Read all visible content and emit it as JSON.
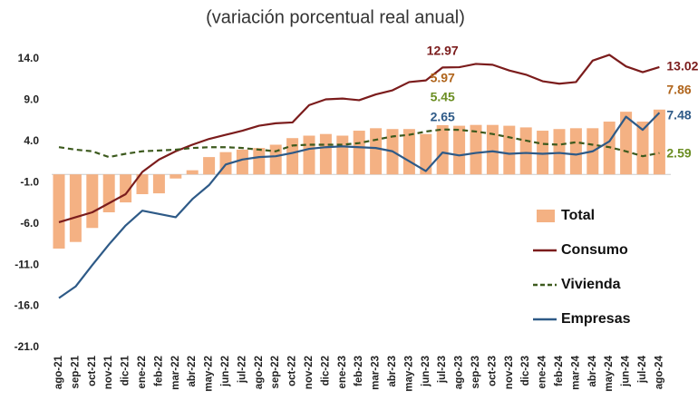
{
  "chart_data": {
    "type": "combo",
    "subtitle": "(variación porcentual real anual)",
    "categories": [
      "ago-21",
      "sep-21",
      "oct-21",
      "nov-21",
      "dic-21",
      "ene-22",
      "feb-22",
      "mar-22",
      "abr-22",
      "may-22",
      "jun-22",
      "jul-22",
      "ago-22",
      "sep-22",
      "oct-22",
      "nov-22",
      "dic-22",
      "ene-23",
      "feb-23",
      "mar-23",
      "abr-23",
      "may-23",
      "jun-23",
      "jul-23",
      "ago-23",
      "sep-23",
      "oct-23",
      "nov-23",
      "dic-23",
      "ene-24",
      "feb-24",
      "mar-24",
      "abr-24",
      "may-24",
      "jun-24",
      "jul-24",
      "ago-24"
    ],
    "ylim": [
      -21,
      14
    ],
    "yticks": [
      {
        "value": 14,
        "label": "14.0"
      },
      {
        "value": 9,
        "label": "9.0"
      },
      {
        "value": 4,
        "label": "4.0"
      },
      {
        "value": -1,
        "label": "-1.0"
      },
      {
        "value": -6,
        "label": "-6.0"
      },
      {
        "value": -11,
        "label": "-11.0"
      },
      {
        "value": -16,
        "label": "-16.0"
      },
      {
        "value": -21,
        "label": "-21.0"
      }
    ],
    "series": [
      {
        "name": "Total",
        "mark": "bar",
        "color": "#f4b183",
        "label_color": "#b0651c",
        "values": [
          -9.0,
          -8.2,
          -6.5,
          -4.6,
          -3.4,
          -2.4,
          -2.3,
          -0.5,
          0.5,
          2.1,
          2.7,
          3.0,
          3.2,
          3.6,
          4.4,
          4.7,
          4.9,
          4.7,
          5.3,
          5.6,
          5.5,
          5.5,
          4.9,
          5.97,
          5.9,
          6.0,
          6.0,
          5.9,
          5.7,
          5.3,
          5.5,
          5.6,
          5.6,
          6.4,
          7.6,
          6.4,
          7.86
        ],
        "value_labels": [
          null,
          null,
          null,
          null,
          null,
          null,
          null,
          null,
          null,
          null,
          null,
          null,
          null,
          null,
          null,
          null,
          null,
          null,
          null,
          null,
          null,
          null,
          null,
          "5.97",
          null,
          null,
          null,
          null,
          null,
          null,
          null,
          null,
          null,
          null,
          null,
          null,
          "7.86"
        ]
      },
      {
        "name": "Consumo",
        "mark": "line",
        "dash": false,
        "color": "#7b1c1c",
        "label_color": "#7b1c1c",
        "values": [
          -5.8,
          -5.2,
          -4.6,
          -3.5,
          -2.4,
          0.3,
          1.8,
          2.8,
          3.6,
          4.3,
          4.8,
          5.3,
          5.9,
          6.2,
          6.3,
          8.4,
          9.1,
          9.2,
          9.0,
          9.7,
          10.2,
          11.2,
          11.4,
          12.97,
          13.0,
          13.4,
          13.3,
          12.6,
          12.1,
          11.3,
          11.0,
          11.2,
          13.8,
          14.5,
          13.1,
          12.4,
          13.02
        ],
        "value_labels": [
          null,
          null,
          null,
          null,
          null,
          null,
          null,
          null,
          null,
          null,
          null,
          null,
          null,
          null,
          null,
          null,
          null,
          null,
          null,
          null,
          null,
          null,
          null,
          "12.97",
          null,
          null,
          null,
          null,
          null,
          null,
          null,
          null,
          null,
          null,
          null,
          null,
          "13.02"
        ]
      },
      {
        "name": "Vivienda",
        "mark": "line",
        "dash": true,
        "color": "#3d5a1e",
        "label_color": "#6b8e23",
        "values": [
          3.3,
          3.0,
          2.8,
          2.1,
          2.5,
          2.8,
          2.9,
          3.0,
          3.2,
          3.3,
          3.3,
          3.2,
          3.0,
          2.8,
          3.5,
          3.6,
          3.6,
          3.6,
          3.8,
          4.2,
          4.6,
          4.8,
          5.2,
          5.45,
          5.4,
          5.2,
          4.9,
          4.5,
          4.1,
          3.7,
          3.6,
          3.9,
          3.6,
          3.3,
          2.8,
          2.2,
          2.59
        ],
        "value_labels": [
          null,
          null,
          null,
          null,
          null,
          null,
          null,
          null,
          null,
          null,
          null,
          null,
          null,
          null,
          null,
          null,
          null,
          null,
          null,
          null,
          null,
          null,
          null,
          "5.45",
          null,
          null,
          null,
          null,
          null,
          null,
          null,
          null,
          null,
          null,
          null,
          null,
          "2.59"
        ]
      },
      {
        "name": "Empresas",
        "mark": "line",
        "dash": false,
        "color": "#2e5a87",
        "label_color": "#2e5a87",
        "values": [
          -15.0,
          -13.6,
          -11.0,
          -8.5,
          -6.2,
          -4.4,
          -4.8,
          -5.2,
          -3.0,
          -1.3,
          1.2,
          1.8,
          2.1,
          2.2,
          2.6,
          3.1,
          3.3,
          3.4,
          3.3,
          3.2,
          2.8,
          1.6,
          0.4,
          2.65,
          2.3,
          2.6,
          2.8,
          2.5,
          2.6,
          2.5,
          2.6,
          2.4,
          2.8,
          4.0,
          7.0,
          5.4,
          7.48
        ],
        "value_labels": [
          null,
          null,
          null,
          null,
          null,
          null,
          null,
          null,
          null,
          null,
          null,
          null,
          null,
          null,
          null,
          null,
          null,
          null,
          null,
          null,
          null,
          null,
          null,
          "2.65",
          null,
          null,
          null,
          null,
          null,
          null,
          null,
          null,
          null,
          null,
          null,
          null,
          "7.48"
        ]
      }
    ]
  }
}
